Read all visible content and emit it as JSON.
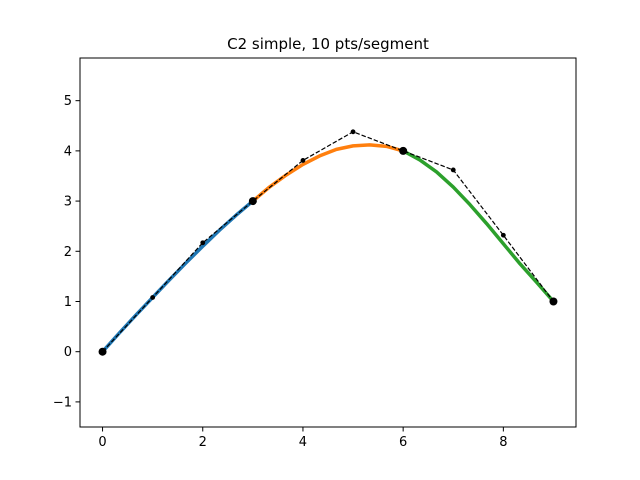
{
  "chart_data": {
    "type": "line",
    "title": "C2 simple, 10 pts/segment",
    "xlabel": "",
    "ylabel": "",
    "xlim": [
      -0.45,
      9.45
    ],
    "ylim": [
      -1.5,
      5.85
    ],
    "xticks": [
      0,
      2,
      4,
      6,
      8
    ],
    "yticks": [
      -1,
      0,
      1,
      2,
      3,
      4,
      5
    ],
    "grid": false,
    "segments": [
      {
        "color": "#1f77b4",
        "x": [
          0,
          0.333,
          0.667,
          1.0,
          1.333,
          1.667,
          2.0,
          2.333,
          2.667,
          3.0
        ],
        "y": [
          0,
          0.37,
          0.73,
          1.08,
          1.43,
          1.77,
          2.1,
          2.42,
          2.72,
          3.0
        ]
      },
      {
        "color": "#ff7f0e",
        "x": [
          3.0,
          3.333,
          3.667,
          4.0,
          4.333,
          4.667,
          5.0,
          5.333,
          5.667,
          6.0
        ],
        "y": [
          3.0,
          3.28,
          3.52,
          3.73,
          3.9,
          4.03,
          4.1,
          4.12,
          4.09,
          4.0
        ]
      },
      {
        "color": "#2ca02c",
        "x": [
          6.0,
          6.333,
          6.667,
          7.0,
          7.333,
          7.667,
          8.0,
          8.333,
          8.667,
          9.0
        ],
        "y": [
          4.0,
          3.82,
          3.58,
          3.28,
          2.93,
          2.55,
          2.15,
          1.75,
          1.38,
          1.0
        ]
      }
    ],
    "control_polygon": {
      "color": "#000000",
      "x": [
        0,
        1,
        2,
        3,
        4,
        5,
        6,
        7,
        8,
        9
      ],
      "y": [
        0,
        1.08,
        2.17,
        3.0,
        3.81,
        4.38,
        4.0,
        3.62,
        2.32,
        1.0
      ]
    },
    "knots": {
      "x": [
        0,
        3,
        6,
        9
      ],
      "y": [
        0,
        3,
        4,
        1
      ]
    }
  }
}
